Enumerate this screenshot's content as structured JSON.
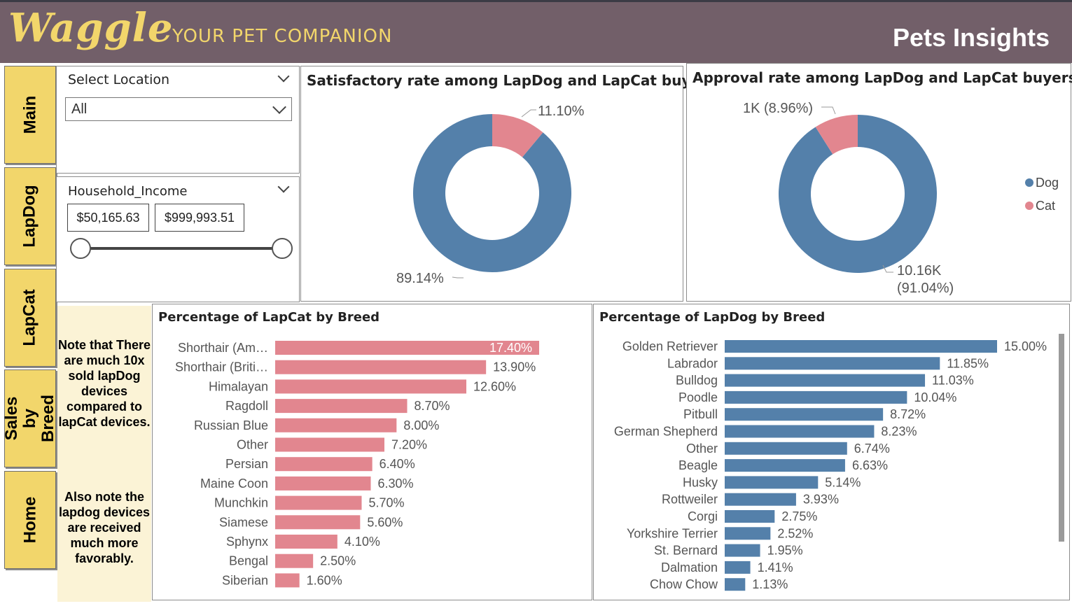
{
  "header": {
    "logo_text": "Waggle",
    "tagline": "YOUR PET COMPANION",
    "page_title": "Pets Insights"
  },
  "nav": {
    "items": [
      {
        "label": "Main"
      },
      {
        "label": "LapDog"
      },
      {
        "label": "LapCat"
      },
      {
        "label": "Sales by Breed"
      },
      {
        "label": "Home"
      }
    ]
  },
  "location_slicer": {
    "title": "Select Location",
    "value": "All"
  },
  "income_slicer": {
    "title": "Household_Income",
    "min_value": "$50,165.63",
    "max_value": "$999,993.51"
  },
  "notes": {
    "note1": "Note that There are much 10x sold lapDog devices compared to lapCat devices.",
    "note2": "Also note the lapdog devices are received much more favorably."
  },
  "colors": {
    "dog": "#5480aa",
    "cat": "#e2868f",
    "nav": "#f2d66b",
    "header": "#725f69"
  },
  "chart_data": [
    {
      "type": "pie",
      "title": "Satisfactory rate among LapDog and LapCat buyers",
      "series": [
        {
          "name": "Dog",
          "value": 89.14,
          "label": "89.14%"
        },
        {
          "name": "Cat",
          "value": 11.1,
          "label": "11.10%"
        }
      ]
    },
    {
      "type": "pie",
      "title": "Approval rate among LapDog and LapCat buyers",
      "legend": [
        "Dog",
        "Cat"
      ],
      "legend_position": "right",
      "series": [
        {
          "name": "Dog",
          "value": 91.04,
          "label_line1": "10.16K",
          "label_line2": "(91.04%)"
        },
        {
          "name": "Cat",
          "value": 8.96,
          "label_line1": "1K (8.96%)",
          "label_line2": ""
        }
      ]
    },
    {
      "type": "bar",
      "title": "Percentage of LapCat by Breed",
      "categories": [
        "Shorthair (Am…",
        "Shorthair (Briti…",
        "Himalayan",
        "Ragdoll",
        "Russian Blue",
        "Other",
        "Persian",
        "Maine Coon",
        "Munchkin",
        "Siamese",
        "Sphynx",
        "Bengal",
        "Siberian"
      ],
      "values": [
        17.4,
        13.9,
        12.6,
        8.7,
        8.0,
        7.2,
        6.4,
        6.3,
        5.7,
        5.6,
        4.1,
        2.5,
        1.6
      ],
      "labels": [
        "17.40%",
        "13.90%",
        "12.60%",
        "8.70%",
        "8.00%",
        "7.20%",
        "6.40%",
        "6.30%",
        "5.70%",
        "5.60%",
        "4.10%",
        "2.50%",
        "1.60%"
      ]
    },
    {
      "type": "bar",
      "title": "Percentage of LapDog by Breed",
      "categories": [
        "Golden Retriever",
        "Labrador",
        "Bulldog",
        "Poodle",
        "Pitbull",
        "German Shepherd",
        "Other",
        "Beagle",
        "Husky",
        "Rottweiler",
        "Corgi",
        "Yorkshire Terrier",
        "St. Bernard",
        "Dalmation",
        "Chow Chow"
      ],
      "values": [
        15.0,
        11.85,
        11.03,
        10.04,
        8.72,
        8.23,
        6.74,
        6.63,
        5.14,
        3.93,
        2.75,
        2.52,
        1.95,
        1.41,
        1.13
      ],
      "labels": [
        "15.00%",
        "11.85%",
        "11.03%",
        "10.04%",
        "8.72%",
        "8.23%",
        "6.74%",
        "6.63%",
        "5.14%",
        "3.93%",
        "2.75%",
        "2.52%",
        "1.95%",
        "1.41%",
        "1.13%"
      ]
    }
  ]
}
